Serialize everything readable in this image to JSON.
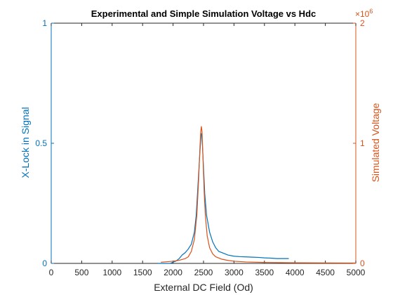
{
  "chart_data": {
    "type": "line",
    "title": "Experimental and Simple Simulation Voltage vs Hdc",
    "xlabel": "External DC Field (Od)",
    "ylabel_left": "X-Lock in Signal",
    "ylabel_right": "Simulated Voltage",
    "right_axis_multiplier": "×10",
    "right_axis_exponent": "6",
    "xlim": [
      0,
      5000
    ],
    "ylim_left": [
      0,
      1
    ],
    "ylim_right": [
      0,
      2
    ],
    "x_ticks": [
      "0",
      "500",
      "1000",
      "1500",
      "2000",
      "2500",
      "3000",
      "3500",
      "4000",
      "4500",
      "5000"
    ],
    "y_ticks_left": [
      "0",
      "0.5",
      "1"
    ],
    "y_ticks_right": [
      "0",
      "1",
      "2"
    ],
    "grid": false,
    "colors": {
      "left": "#0072BD",
      "right": "#D95319"
    },
    "series": [
      {
        "axis": "left",
        "x": [
          1750,
          1850,
          1950,
          2000,
          2050,
          2100,
          2150,
          2200,
          2250,
          2300,
          2350,
          2380,
          2410,
          2440,
          2460,
          2470,
          2480,
          2500,
          2520,
          2550,
          2600,
          2650,
          2700,
          2750,
          2800,
          2850,
          2900,
          3000,
          3100,
          3200,
          3300,
          3400,
          3500,
          3600,
          3700,
          3800,
          3900
        ],
        "y": [
          0.0,
          0.0,
          0.0,
          0.005,
          0.01,
          0.02,
          0.035,
          0.045,
          0.06,
          0.08,
          0.13,
          0.2,
          0.33,
          0.46,
          0.54,
          0.54,
          0.5,
          0.4,
          0.29,
          0.2,
          0.13,
          0.09,
          0.065,
          0.05,
          0.045,
          0.04,
          0.035,
          0.03,
          0.028,
          0.027,
          0.026,
          0.025,
          0.023,
          0.022,
          0.02,
          0.02,
          0.02
        ]
      },
      {
        "axis": "right",
        "x": [
          1800,
          2000,
          2100,
          2200,
          2250,
          2300,
          2350,
          2390,
          2420,
          2440,
          2455,
          2465,
          2475,
          2490,
          2510,
          2530,
          2560,
          2600,
          2650,
          2700,
          2800,
          2900,
          3000,
          3200,
          3500,
          4000,
          5000
        ],
        "y": [
          0.01,
          0.018,
          0.026,
          0.04,
          0.055,
          0.1,
          0.2,
          0.4,
          0.7,
          0.95,
          1.1,
          1.14,
          1.1,
          0.9,
          0.6,
          0.4,
          0.23,
          0.13,
          0.08,
          0.055,
          0.035,
          0.025,
          0.018,
          0.012,
          0.008,
          0.005,
          0.003
        ]
      }
    ]
  }
}
